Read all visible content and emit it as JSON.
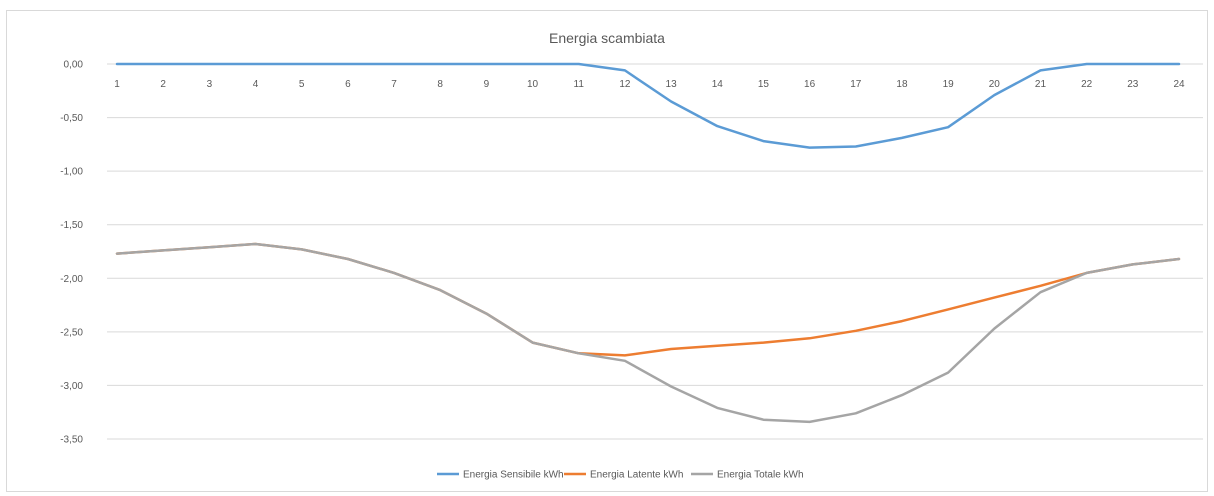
{
  "chart_data": {
    "type": "line",
    "title": "Energia scambiata",
    "xlabel": "",
    "ylabel": "",
    "x": [
      1,
      2,
      3,
      4,
      5,
      6,
      7,
      8,
      9,
      10,
      11,
      12,
      13,
      14,
      15,
      16,
      17,
      18,
      19,
      20,
      21,
      22,
      23,
      24
    ],
    "x_tick_labels": [
      "1",
      "2",
      "3",
      "4",
      "5",
      "6",
      "7",
      "8",
      "9",
      "10",
      "11",
      "12",
      "13",
      "14",
      "15",
      "16",
      "17",
      "18",
      "19",
      "20",
      "21",
      "22",
      "23",
      "24"
    ],
    "ylim": [
      -3.5,
      0
    ],
    "y_ticks": [
      0,
      -0.5,
      -1,
      -1.5,
      -2,
      -2.5,
      -3,
      -3.5
    ],
    "y_tick_labels": [
      "0,00",
      "-0,50",
      "-1,00",
      "-1,50",
      "-2,00",
      "-2,50",
      "-3,00",
      "-3,50"
    ],
    "grid": true,
    "legend_position": "bottom",
    "series": [
      {
        "name": "Energia Sensibile kWh",
        "color": "#5b9bd5",
        "values": [
          0,
          0,
          0,
          0,
          0,
          0,
          0,
          0,
          0,
          0,
          0,
          -0.06,
          -0.35,
          -0.58,
          -0.72,
          -0.78,
          -0.77,
          -0.69,
          -0.59,
          -0.29,
          -0.06,
          0,
          0,
          0
        ]
      },
      {
        "name": "Energia Latente kWh",
        "color": "#ed7d31",
        "values": [
          -1.77,
          -1.74,
          -1.71,
          -1.68,
          -1.73,
          -1.82,
          -1.95,
          -2.11,
          -2.33,
          -2.6,
          -2.7,
          -2.72,
          -2.66,
          -2.63,
          -2.6,
          -2.56,
          -2.49,
          -2.4,
          -2.29,
          -2.18,
          -2.07,
          -1.95,
          -1.87,
          -1.82
        ]
      },
      {
        "name": "Energia Totale kWh",
        "color": "#a5a5a5",
        "values": [
          -1.77,
          -1.74,
          -1.71,
          -1.68,
          -1.73,
          -1.82,
          -1.95,
          -2.11,
          -2.33,
          -2.6,
          -2.7,
          -2.77,
          -3.01,
          -3.21,
          -3.32,
          -3.34,
          -3.26,
          -3.09,
          -2.88,
          -2.47,
          -2.13,
          -1.95,
          -1.87,
          -1.82
        ]
      }
    ]
  }
}
